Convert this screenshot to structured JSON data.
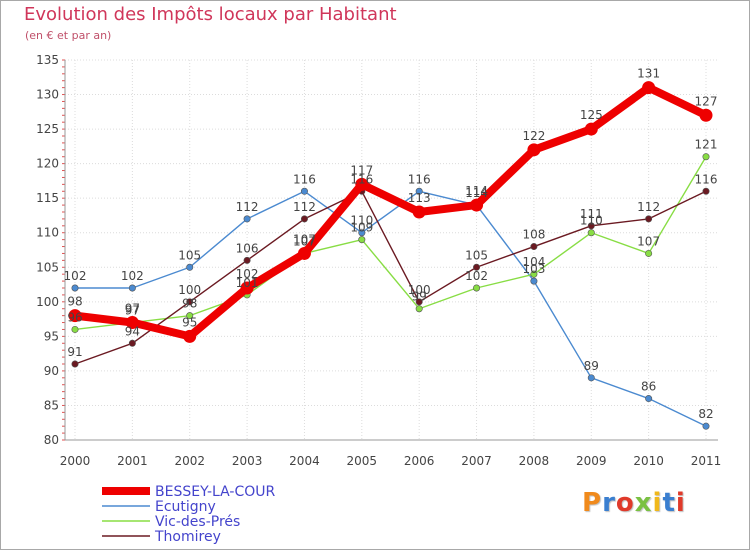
{
  "header": {
    "title": "Evolution des Impôts locaux par Habitant",
    "subtitle": "(en € et par an)"
  },
  "logo": {
    "text": "Proxiti",
    "colors": [
      "#f08a1c",
      "#3a7fd0",
      "#e03a2a",
      "#7ac142",
      "#f0b81c",
      "#3a7fd0",
      "#e03a2a"
    ]
  },
  "chart_data": {
    "type": "line",
    "title": "Evolution des Impôts locaux par Habitant",
    "subtitle": "(en € et par an)",
    "xlabel": "",
    "ylabel": "",
    "x": [
      "2000",
      "2001",
      "2002",
      "2003",
      "2004",
      "2005",
      "2006",
      "2007",
      "2008",
      "2009",
      "2010",
      "2011"
    ],
    "ylim": [
      80,
      135
    ],
    "yticks": [
      80,
      85,
      90,
      95,
      100,
      105,
      110,
      115,
      120,
      125,
      130,
      135
    ],
    "grid": true,
    "legend_position": "bottom-left",
    "series": [
      {
        "name": "BESSEY-LA-COUR",
        "color": "#ee0000",
        "values": [
          98,
          97,
          95,
          102,
          107,
          117,
          113,
          114,
          122,
          125,
          131,
          127
        ]
      },
      {
        "name": "Ecutigny",
        "color": "#4b8ad0",
        "values": [
          102,
          102,
          105,
          112,
          116,
          110,
          116,
          114,
          103,
          89,
          86,
          82
        ]
      },
      {
        "name": "Vic-des-Prés",
        "color": "#88dd44",
        "values": [
          96,
          97,
          98,
          101,
          107,
          109,
          99,
          102,
          104,
          110,
          107,
          121
        ]
      },
      {
        "name": "Thomirey",
        "color": "#6b1a22",
        "values": [
          91,
          94,
          100,
          106,
          112,
          116,
          100,
          105,
          108,
          111,
          112,
          116
        ]
      }
    ]
  }
}
